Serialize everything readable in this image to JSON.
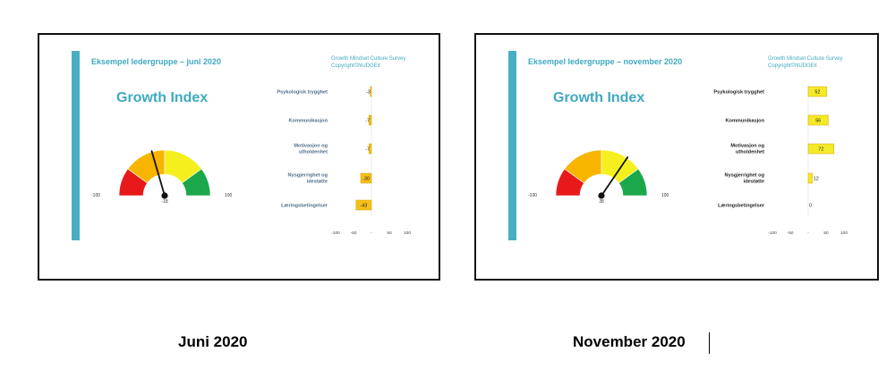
{
  "colors": {
    "accent": "#3fa9bf",
    "bar_fill": "#f5bf1a",
    "bar_edge": "#d49a00",
    "bar_fill_nov": "#f5ea28"
  },
  "panels": [
    {
      "title": "Eksempel ledergruppe  – juni 2020",
      "survey_line1": "Growth Mindset Culture Survey",
      "survey_line2": "Copyright©NUDGEit",
      "gauge_title": "Growth Index",
      "gauge_min": "-100",
      "gauge_max": "100",
      "gauge_value": "-18",
      "caption": "Juni 2020"
    },
    {
      "title": "Eksempel ledergruppe  – november 2020",
      "survey_line1": "Growth Mindset Culture Survey",
      "survey_line2": "Copyright©NUDGEit",
      "gauge_title": "Growth Index",
      "gauge_min": "-100",
      "gauge_max": "100",
      "gauge_value": "38",
      "caption": "November 2020"
    }
  ],
  "chart_data": [
    {
      "type": "gauge",
      "title": "Growth Index",
      "range": [
        -100,
        100
      ],
      "value": -18,
      "bands": [
        {
          "from": -100,
          "to": -60,
          "color": "#e8191a"
        },
        {
          "from": -60,
          "to": 0,
          "color": "#f7b500"
        },
        {
          "from": 0,
          "to": 60,
          "color": "#f5f01d"
        },
        {
          "from": 60,
          "to": 100,
          "color": "#1aa84a"
        }
      ]
    },
    {
      "type": "bar",
      "orientation": "horizontal",
      "categories": [
        "Psykologisk trygghet",
        "Kommunikasjon",
        "Motivasjon og utholdenhet",
        "Nysgjerrighet og idestøtte",
        "Læringsbetingelser"
      ],
      "values": [
        -3,
        -7,
        -7,
        -30,
        -43
      ],
      "labels": [
        "-3",
        "-7",
        "-7",
        "-30",
        "-43"
      ],
      "xlim": [
        -100,
        100
      ],
      "ticks": [
        "-100",
        "-50",
        "-",
        "50",
        "100"
      ],
      "bar_color": "#f5bf1a"
    },
    {
      "type": "gauge",
      "title": "Growth Index",
      "range": [
        -100,
        100
      ],
      "value": 38,
      "bands": [
        {
          "from": -100,
          "to": -60,
          "color": "#e8191a"
        },
        {
          "from": -60,
          "to": 0,
          "color": "#f7b500"
        },
        {
          "from": 0,
          "to": 60,
          "color": "#f5f01d"
        },
        {
          "from": 60,
          "to": 100,
          "color": "#1aa84a"
        }
      ]
    },
    {
      "type": "bar",
      "orientation": "horizontal",
      "categories": [
        "Psykologisk trygghet",
        "Kommunikasjon",
        "Motivasjon og utholdenhet",
        "Nysgjerrighet og idestøtte",
        "Læringsbetingelser"
      ],
      "values": [
        52,
        56,
        72,
        12,
        0
      ],
      "labels": [
        "52",
        "56",
        "72",
        "12",
        "0"
      ],
      "xlim": [
        -100,
        100
      ],
      "ticks": [
        "-100",
        "-50",
        "-",
        "50",
        "100"
      ],
      "bar_color": "#f5ea28"
    }
  ]
}
